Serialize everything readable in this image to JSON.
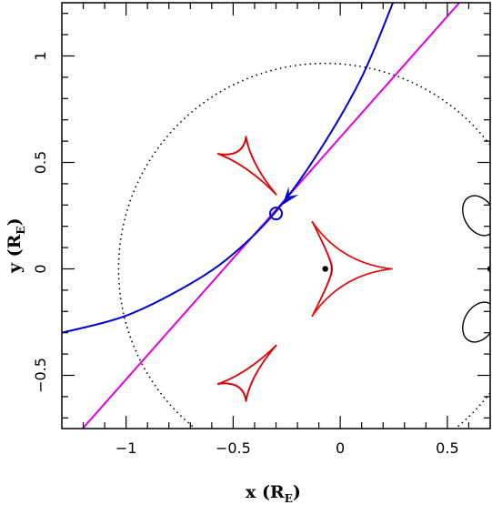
{
  "chart_data": {
    "type": "line",
    "title": "",
    "xlabel": "x (R",
    "xlabel_sub": "E",
    "xlabel_close": ")",
    "ylabel": "y (R",
    "ylabel_sub": "E",
    "ylabel_close": ")",
    "xlim": [
      -1.3,
      0.7
    ],
    "ylim": [
      -0.75,
      1.25
    ],
    "xticks": [
      -1,
      -0.5,
      0,
      0.5
    ],
    "xtick_labels": [
      "−1",
      "−0.5",
      "0",
      "0.5"
    ],
    "yticks": [
      -0.5,
      0,
      0.5,
      1
    ],
    "ytick_labels": [
      "−0.5",
      "0",
      "0.5",
      "1"
    ],
    "grid": false,
    "colors": {
      "trajectory": "#0000cc",
      "straight_line": "#e000e0",
      "caustics": "#dd0000",
      "critical_curves": "#000000",
      "einstein_ring": "#000000"
    },
    "einstein_ring": {
      "center": [
        -0.07,
        0.0
      ],
      "radius": 0.965
    },
    "straight_line": {
      "points": [
        [
          -1.3,
          -0.86
        ],
        [
          0.6,
          1.3
        ]
      ]
    },
    "trajectory": {
      "points": [
        [
          -1.3,
          -0.3
        ],
        [
          -1.0,
          -0.22
        ],
        [
          -0.7,
          -0.07
        ],
        [
          -0.5,
          0.07
        ],
        [
          -0.3,
          0.27
        ],
        [
          -0.1,
          0.55
        ],
        [
          0.1,
          0.9
        ],
        [
          0.25,
          1.26
        ]
      ]
    },
    "source_marker": {
      "x": -0.3,
      "y": 0.26
    },
    "arrow_head": {
      "tip": [
        -0.27,
        0.3
      ],
      "direction": [
        0.55,
        0.7
      ]
    },
    "lens_masses": [
      [
        -0.07,
        0.0
      ],
      [
        0.7,
        0.0
      ]
    ],
    "caustics": [
      {
        "name": "upper",
        "cusps": [
          [
            -0.57,
            0.54
          ],
          [
            -0.44,
            0.62
          ],
          [
            -0.3,
            0.35
          ]
        ]
      },
      {
        "name": "lower",
        "cusps": [
          [
            -0.57,
            -0.54
          ],
          [
            -0.44,
            -0.62
          ],
          [
            -0.3,
            -0.36
          ]
        ]
      },
      {
        "name": "central",
        "cusps": [
          [
            -0.13,
            0.22
          ],
          [
            0.24,
            0.0
          ],
          [
            -0.13,
            -0.22
          ],
          [
            -0.04,
            0.0
          ]
        ]
      }
    ],
    "critical_curves": [
      {
        "center": [
          0.65,
          0.25
        ],
        "rx": 0.07,
        "ry": 0.1
      },
      {
        "center": [
          0.65,
          -0.25
        ],
        "rx": 0.07,
        "ry": 0.1
      }
    ]
  }
}
